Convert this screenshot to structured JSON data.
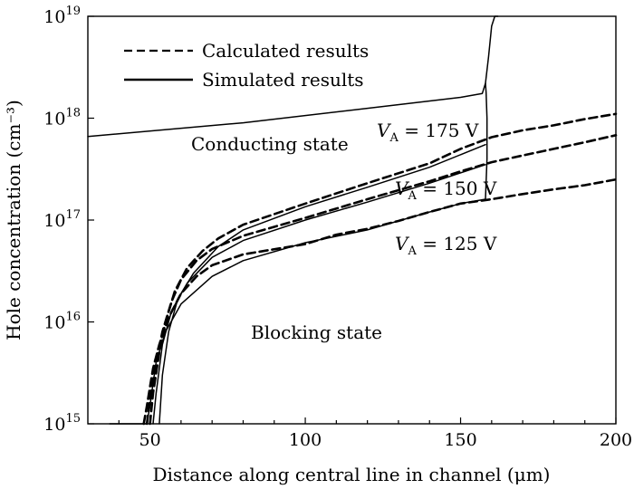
{
  "chart_data": {
    "type": "line",
    "xlabel": "Distance along central line in channel (μm)",
    "ylabel": "Hole concentration (cm⁻³)",
    "xlim": [
      30,
      200
    ],
    "ylim": [
      1000000000000000.0,
      1e+19
    ],
    "yscale": "log",
    "grid": false,
    "legend_position": "top-left",
    "x_ticks": [
      {
        "v": 50,
        "label": "50"
      },
      {
        "v": 100,
        "label": "100"
      },
      {
        "v": 150,
        "label": "150"
      },
      {
        "v": 200,
        "label": "200"
      }
    ],
    "y_ticks": [
      {
        "v": 1000000000000000.0,
        "base": "10",
        "exp": "15"
      },
      {
        "v": 1e+16,
        "base": "10",
        "exp": "16"
      },
      {
        "v": 1e+17,
        "base": "10",
        "exp": "17"
      },
      {
        "v": 1e+18,
        "base": "10",
        "exp": "18"
      },
      {
        "v": 1e+19,
        "base": "10",
        "exp": "19"
      }
    ],
    "legend": [
      {
        "label": "Calculated results",
        "style": "dashed"
      },
      {
        "label": "Simulated results",
        "style": "solid"
      }
    ],
    "annotations": {
      "conducting": "Conducting state",
      "blocking": "Blocking state",
      "va_175": {
        "var": "V",
        "sub": "A",
        "rest": " = 175 V"
      },
      "va_150": {
        "var": "V",
        "sub": "A",
        "rest": " = 150 V"
      },
      "va_125": {
        "var": "V",
        "sub": "A",
        "rest": " = 125 V"
      }
    },
    "series": [
      {
        "style": "solid",
        "x": [
          30,
          80,
          120,
          150,
          157,
          158,
          159,
          160,
          161,
          162
        ],
        "y": [
          6.6e+17,
          9e+17,
          1.25e+18,
          1.6e+18,
          1.75e+18,
          2.2e+18,
          4e+18,
          8e+18,
          1e+19,
          1e+19
        ]
      },
      {
        "style": "solid",
        "x": [
          158,
          158.5,
          158.5,
          158.2,
          158
        ],
        "y": [
          1.6e+17,
          4e+17,
          1e+18,
          1.8e+18,
          2.2e+18
        ]
      },
      {
        "style": "solid",
        "x": [
          37,
          49,
          50,
          51,
          52,
          55,
          60,
          70,
          80,
          100,
          120,
          140,
          150,
          158
        ],
        "y": [
          1000000000000000.0,
          1000000000000000.0,
          1500000000000000.0,
          2500000000000000.0,
          4000000000000000.0,
          8000000000000000.0,
          1.5e+16,
          2.8e+16,
          4e+16,
          6e+16,
          8e+16,
          1.2e+17,
          1.45e+17,
          1.6e+17
        ]
      },
      {
        "style": "solid",
        "x": [
          51,
          52,
          54,
          57,
          62,
          70,
          80,
          100,
          120,
          140,
          158
        ],
        "y": [
          1000000000000000.0,
          2000000000000000.0,
          6000000000000000.0,
          1.3e+16,
          2.4e+16,
          4.3e+16,
          6.3e+16,
          1e+17,
          1.5e+17,
          2.3e+17,
          3.5e+17
        ]
      },
      {
        "style": "solid",
        "x": [
          53,
          54,
          56,
          59,
          64,
          72,
          80,
          100,
          120,
          140,
          158
        ],
        "y": [
          1000000000000000.0,
          3000000000000000.0,
          8000000000000000.0,
          1.7e+16,
          3e+16,
          5.5e+16,
          8e+16,
          1.35e+17,
          2.1e+17,
          3.3e+17,
          5.5e+17
        ]
      },
      {
        "style": "dashed",
        "x": [
          48,
          49,
          50,
          51,
          53,
          56,
          60,
          65,
          70,
          80,
          100,
          110,
          120,
          130,
          140,
          150,
          160,
          170,
          180,
          190,
          200
        ],
        "y": [
          1000000000000000.0,
          1500000000000000.0,
          2300000000000000.0,
          3500000000000000.0,
          6000000000000000.0,
          1.1e+16,
          1.9e+16,
          2.8e+16,
          3.6e+16,
          4.6e+16,
          5.8e+16,
          7.2e+16,
          8.2e+16,
          9.8e+16,
          1.2e+17,
          1.45e+17,
          1.6e+17,
          1.8e+17,
          2e+17,
          2.2e+17,
          2.5e+17
        ]
      },
      {
        "style": "dashed",
        "x": [
          49,
          50,
          52,
          54,
          57,
          60,
          65,
          70,
          80,
          100,
          120,
          140,
          150,
          160,
          170,
          180,
          190,
          200
        ],
        "y": [
          1000000000000000.0,
          1800000000000000.0,
          4000000000000000.0,
          8000000000000000.0,
          1.6e+16,
          2.6e+16,
          4e+16,
          5.2e+16,
          7e+16,
          1.05e+17,
          1.6e+17,
          2.4e+17,
          3e+17,
          3.7e+17,
          4.3e+17,
          5e+17,
          5.8e+17,
          6.8e+17
        ]
      },
      {
        "style": "dashed",
        "x": [
          50,
          51,
          53,
          55,
          58,
          62,
          67,
          72,
          80,
          100,
          120,
          140,
          150,
          160,
          170,
          180,
          190,
          200
        ],
        "y": [
          1000000000000000.0,
          2000000000000000.0,
          5000000000000000.0,
          1e+16,
          2e+16,
          3.4e+16,
          5e+16,
          6.6e+16,
          9e+16,
          1.45e+17,
          2.3e+17,
          3.6e+17,
          5e+17,
          6.5e+17,
          7.6e+17,
          8.5e+17,
          9.8e+17,
          1.1e+18
        ]
      }
    ]
  }
}
